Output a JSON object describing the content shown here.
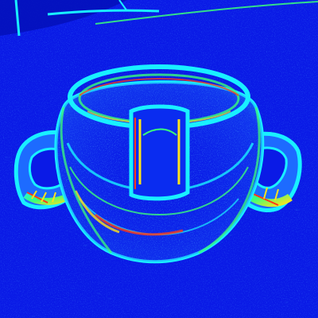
{
  "image": {
    "palette": {
      "background": "#0a1ae6",
      "background_dark": "#0410b8",
      "edge_cyan": "#19f0ff",
      "edge_green": "#39ff7a",
      "edge_yellow": "#ffe31a",
      "edge_red": "#ff3a16",
      "mid_blue": "#1d6bff"
    }
  }
}
